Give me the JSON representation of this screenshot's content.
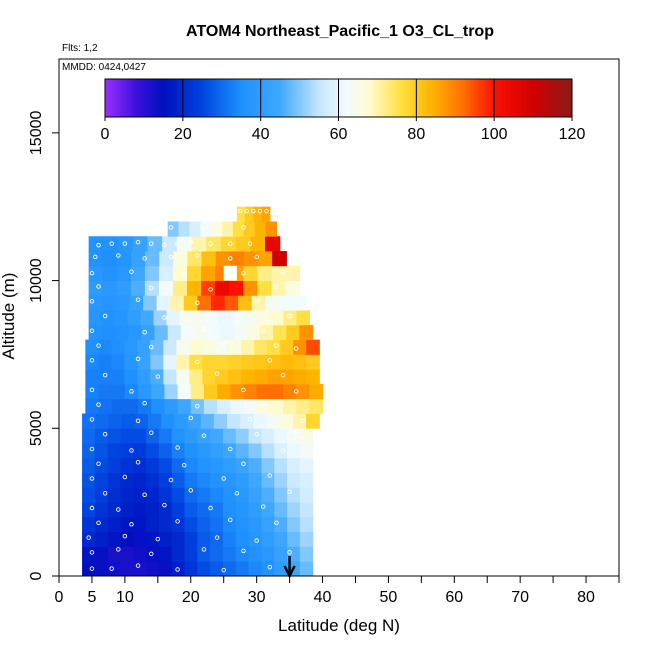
{
  "chart_data": {
    "type": "heatmap",
    "title": "ATOM4 Northeast_Pacific_1 O3_CL_trop",
    "flights_note": "Flts: 1,2",
    "date_note": "MMDD: 0424,0427",
    "xlabel": "Latitude (deg N)",
    "ylabel": "Altitude (m)",
    "xlim": [
      0,
      85
    ],
    "ylim": [
      0,
      17500
    ],
    "x_ticks": [
      0,
      5,
      10,
      20,
      30,
      40,
      50,
      60,
      70,
      80
    ],
    "x_tick_labels": [
      "0",
      "5",
      "10",
      "20",
      "30",
      "40",
      "50",
      "60",
      "70",
      "80"
    ],
    "x_minor_ticks": [
      15,
      25,
      35,
      45,
      55,
      65,
      75,
      85
    ],
    "y_ticks": [
      0,
      5000,
      10000,
      15000
    ],
    "y_tick_labels": [
      "0",
      "5000",
      "10000",
      "15000"
    ],
    "colorbar": {
      "min": 0,
      "max": 120,
      "ticks": [
        0,
        20,
        40,
        60,
        80,
        100,
        120
      ],
      "tick_labels": [
        "0",
        "20",
        "40",
        "60",
        "80",
        "100",
        "120"
      ],
      "stops": [
        {
          "value": 0,
          "color": "#9b30ff"
        },
        {
          "value": 8,
          "color": "#3a10dd"
        },
        {
          "value": 15,
          "color": "#0010c0"
        },
        {
          "value": 25,
          "color": "#0044e0"
        },
        {
          "value": 35,
          "color": "#1e90ff"
        },
        {
          "value": 45,
          "color": "#40a8ff"
        },
        {
          "value": 55,
          "color": "#c4e6ff"
        },
        {
          "value": 62,
          "color": "#f2fbff"
        },
        {
          "value": 68,
          "color": "#fffbd0"
        },
        {
          "value": 76,
          "color": "#ffe040"
        },
        {
          "value": 84,
          "color": "#ffb400"
        },
        {
          "value": 92,
          "color": "#ff7000"
        },
        {
          "value": 100,
          "color": "#ff1000"
        },
        {
          "value": 110,
          "color": "#d00000"
        },
        {
          "value": 120,
          "color": "#8b1a1a"
        }
      ]
    },
    "levels": [
      {
        "alt": 250,
        "lat_start": 3.5,
        "lat_end": 38.5,
        "values": [
          15,
          14,
          13,
          12,
          12,
          13,
          14,
          18,
          22,
          26,
          28,
          30,
          32,
          34,
          36,
          40,
          44,
          48
        ]
      },
      {
        "alt": 750,
        "lat_start": 3.5,
        "lat_end": 38.5,
        "values": [
          16,
          14,
          12,
          12,
          13,
          14,
          16,
          20,
          24,
          28,
          30,
          32,
          34,
          36,
          38,
          42,
          46,
          50
        ]
      },
      {
        "alt": 1250,
        "lat_start": 3.5,
        "lat_end": 38.5,
        "values": [
          20,
          18,
          16,
          15,
          14,
          16,
          18,
          20,
          24,
          28,
          30,
          33,
          35,
          37,
          40,
          44,
          48,
          52
        ]
      },
      {
        "alt": 1750,
        "lat_start": 3.5,
        "lat_end": 38.5,
        "values": [
          22,
          20,
          18,
          16,
          16,
          18,
          20,
          22,
          26,
          29,
          31,
          34,
          36,
          38,
          42,
          46,
          50,
          54
        ]
      },
      {
        "alt": 2250,
        "lat_start": 3.5,
        "lat_end": 38.5,
        "values": [
          25,
          22,
          20,
          18,
          17,
          18,
          20,
          24,
          28,
          30,
          32,
          35,
          37,
          40,
          44,
          48,
          52,
          55
        ]
      },
      {
        "alt": 2750,
        "lat_start": 3.5,
        "lat_end": 38.5,
        "values": [
          26,
          24,
          21,
          19,
          18,
          19,
          22,
          26,
          30,
          32,
          34,
          36,
          38,
          42,
          46,
          50,
          54,
          57
        ]
      },
      {
        "alt": 3250,
        "lat_start": 3.5,
        "lat_end": 38.5,
        "values": [
          27,
          25,
          22,
          20,
          19,
          21,
          24,
          28,
          32,
          34,
          36,
          38,
          40,
          44,
          48,
          52,
          56,
          58
        ]
      },
      {
        "alt": 3750,
        "lat_start": 3.5,
        "lat_end": 38.5,
        "values": [
          28,
          26,
          24,
          22,
          21,
          23,
          26,
          30,
          34,
          36,
          38,
          40,
          43,
          46,
          50,
          54,
          58,
          60
        ]
      },
      {
        "alt": 4250,
        "lat_start": 3.5,
        "lat_end": 38.5,
        "values": [
          29,
          27,
          25,
          24,
          23,
          26,
          29,
          33,
          36,
          38,
          41,
          44,
          47,
          50,
          54,
          58,
          61,
          63
        ]
      },
      {
        "alt": 4750,
        "lat_start": 3.5,
        "lat_end": 38.5,
        "values": [
          30,
          28,
          27,
          26,
          26,
          29,
          32,
          36,
          39,
          42,
          45,
          48,
          51,
          55,
          58,
          61,
          63,
          65
        ]
      },
      {
        "alt": 5250,
        "lat_start": 3.5,
        "lat_end": 39.5,
        "values": [
          31,
          30,
          29,
          28,
          29,
          32,
          35,
          39,
          43,
          47,
          51,
          55,
          58,
          61,
          63,
          66,
          70,
          78
        ]
      },
      {
        "alt": 5750,
        "lat_start": 4.0,
        "lat_end": 40.0,
        "values": [
          32,
          31,
          30,
          30,
          32,
          35,
          39,
          44,
          49,
          54,
          58,
          61,
          63,
          66,
          68,
          70,
          72,
          74
        ]
      },
      {
        "alt": 6250,
        "lat_start": 4.0,
        "lat_end": 40.0,
        "values": [
          33,
          32,
          32,
          34,
          38,
          44,
          52,
          62,
          72,
          80,
          85,
          88,
          90,
          92,
          92,
          90,
          88,
          85
        ]
      },
      {
        "alt": 6750,
        "lat_start": 4.0,
        "lat_end": 39.5,
        "values": [
          33,
          33,
          33,
          35,
          40,
          46,
          55,
          64,
          72,
          78,
          80,
          82,
          84,
          85,
          86,
          86,
          85,
          84
        ]
      },
      {
        "alt": 7250,
        "lat_start": 4.0,
        "lat_end": 39.5,
        "values": [
          34,
          33,
          34,
          37,
          42,
          50,
          60,
          70,
          76,
          78,
          78,
          79,
          80,
          81,
          82,
          83,
          82,
          80
        ]
      },
      {
        "alt": 7750,
        "lat_start": 4.0,
        "lat_end": 39.5,
        "values": [
          35,
          34,
          35,
          38,
          42,
          48,
          56,
          64,
          68,
          66,
          64,
          66,
          70,
          74,
          76,
          80,
          88,
          95
        ]
      },
      {
        "alt": 8250,
        "lat_start": 4.5,
        "lat_end": 38.5,
        "values": [
          36,
          35,
          36,
          38,
          42,
          48,
          56,
          62,
          64,
          62,
          61,
          63,
          66,
          70,
          75,
          80,
          88
        ]
      },
      {
        "alt": 8750,
        "lat_start": 4.5,
        "lat_end": 38.0,
        "values": [
          37,
          36,
          37,
          40,
          45,
          52,
          60,
          64,
          64,
          62,
          61,
          62,
          64,
          66,
          68,
          72,
          76
        ]
      },
      {
        "alt": 9250,
        "lat_start": 4.5,
        "lat_end": 37.5,
        "values": [
          38,
          37,
          38,
          42,
          50,
          60,
          70,
          80,
          92,
          98,
          94,
          82,
          70,
          64,
          62,
          62
        ]
      },
      {
        "alt": 9750,
        "lat_start": 4.5,
        "lat_end": 36.5,
        "values": [
          39,
          38,
          40,
          46,
          54,
          62,
          72,
          84,
          96,
          104,
          100,
          88,
          76,
          70,
          66
        ]
      },
      {
        "alt": 10250,
        "lat_start": 4.5,
        "lat_end": 36.5,
        "values": [
          38,
          36,
          38,
          44,
          50,
          58,
          68,
          78,
          86,
          90,
          86,
          78,
          72,
          70,
          70
        ]
      },
      {
        "alt": 10750,
        "lat_start": 4.5,
        "lat_end": 34.5,
        "values": [
          36,
          35,
          37,
          42,
          48,
          56,
          66,
          74,
          82,
          88,
          90,
          88,
          86,
          110
        ]
      },
      {
        "alt": 11250,
        "lat_start": 4.5,
        "lat_end": 33.5,
        "values": [
          36,
          36,
          38,
          42,
          48,
          56,
          64,
          70,
          74,
          78,
          80,
          84,
          105
        ]
      },
      {
        "alt": 11750,
        "lat_start": 16.5,
        "lat_end": 33.0,
        "values": [
          50,
          54,
          58,
          62,
          66,
          70,
          76,
          80,
          84,
          88
        ]
      },
      {
        "alt": 12250,
        "lat_start": 27.0,
        "lat_end": 32.0,
        "values": [
          76,
          80,
          84,
          86
        ]
      }
    ],
    "gaps": [
      {
        "alt": 10250,
        "lat_start": 25.0,
        "lat_end": 27.0
      }
    ],
    "sample_points": [
      [
        5,
        250
      ],
      [
        8,
        250
      ],
      [
        12,
        350
      ],
      [
        18,
        220
      ],
      [
        25,
        200
      ],
      [
        32,
        300
      ],
      [
        5,
        800
      ],
      [
        9,
        900
      ],
      [
        14,
        750
      ],
      [
        22,
        900
      ],
      [
        28,
        850
      ],
      [
        35,
        800
      ],
      [
        4.5,
        1300
      ],
      [
        10,
        1350
      ],
      [
        15,
        1250
      ],
      [
        24,
        1300
      ],
      [
        30,
        1200
      ],
      [
        6,
        1800
      ],
      [
        11,
        1750
      ],
      [
        18,
        1850
      ],
      [
        26,
        1900
      ],
      [
        33,
        1800
      ],
      [
        5,
        2300
      ],
      [
        9,
        2250
      ],
      [
        16,
        2400
      ],
      [
        23,
        2300
      ],
      [
        31,
        2350
      ],
      [
        7,
        2800
      ],
      [
        13,
        2750
      ],
      [
        20,
        2900
      ],
      [
        27,
        2800
      ],
      [
        35,
        2850
      ],
      [
        5,
        3300
      ],
      [
        10,
        3350
      ],
      [
        17,
        3250
      ],
      [
        25,
        3300
      ],
      [
        32,
        3400
      ],
      [
        6,
        3800
      ],
      [
        12,
        3850
      ],
      [
        19,
        3750
      ],
      [
        28,
        3800
      ],
      [
        5,
        4300
      ],
      [
        11,
        4250
      ],
      [
        18,
        4350
      ],
      [
        26,
        4300
      ],
      [
        34,
        4250
      ],
      [
        7,
        4800
      ],
      [
        14,
        4850
      ],
      [
        22,
        4750
      ],
      [
        30,
        4800
      ],
      [
        36,
        4900
      ],
      [
        5,
        5300
      ],
      [
        12,
        5250
      ],
      [
        20,
        5350
      ],
      [
        29,
        5300
      ],
      [
        37,
        5250
      ],
      [
        6,
        5800
      ],
      [
        13,
        5850
      ],
      [
        21,
        5750
      ],
      [
        31,
        5800
      ],
      [
        5,
        6300
      ],
      [
        11,
        6250
      ],
      [
        19,
        6350
      ],
      [
        28,
        6300
      ],
      [
        36,
        6250
      ],
      [
        7,
        6800
      ],
      [
        15,
        6750
      ],
      [
        24,
        6850
      ],
      [
        34,
        6800
      ],
      [
        5,
        7300
      ],
      [
        12,
        7350
      ],
      [
        21,
        7250
      ],
      [
        32,
        7300
      ],
      [
        6,
        7800
      ],
      [
        14,
        7750
      ],
      [
        25,
        7850
      ],
      [
        33,
        7800
      ],
      [
        36,
        7700
      ],
      [
        5,
        8300
      ],
      [
        13,
        8250
      ],
      [
        22,
        8350
      ],
      [
        31,
        8300
      ],
      [
        7,
        8800
      ],
      [
        16,
        8750
      ],
      [
        27,
        8850
      ],
      [
        35,
        8800
      ],
      [
        5,
        9300
      ],
      [
        12,
        9350
      ],
      [
        21,
        9250
      ],
      [
        30,
        9300
      ],
      [
        6,
        9800
      ],
      [
        14,
        9750
      ],
      [
        23,
        9700
      ],
      [
        33,
        9800
      ],
      [
        5,
        10250
      ],
      [
        11,
        10300
      ],
      [
        19,
        10200
      ],
      [
        28,
        10250
      ],
      [
        34,
        10300
      ],
      [
        5.5,
        10800
      ],
      [
        9,
        10850
      ],
      [
        13,
        10750
      ],
      [
        17,
        10800
      ],
      [
        21,
        10850
      ],
      [
        26,
        10750
      ],
      [
        30,
        10800
      ],
      [
        6,
        11200
      ],
      [
        8,
        11250
      ],
      [
        10,
        11250
      ],
      [
        12,
        11300
      ],
      [
        14,
        11250
      ],
      [
        16,
        11200
      ],
      [
        18,
        11250
      ],
      [
        20,
        11300
      ],
      [
        23,
        11250
      ],
      [
        26,
        11250
      ],
      [
        29,
        11250
      ],
      [
        17,
        11800
      ],
      [
        22,
        11750
      ],
      [
        28,
        11800
      ],
      [
        27.5,
        12350
      ],
      [
        28.5,
        12350
      ],
      [
        29.5,
        12350
      ],
      [
        30.5,
        12350
      ],
      [
        31.5,
        12350
      ]
    ],
    "marker": {
      "lat": 35,
      "label": "downward arrow at latitude 35"
    }
  }
}
